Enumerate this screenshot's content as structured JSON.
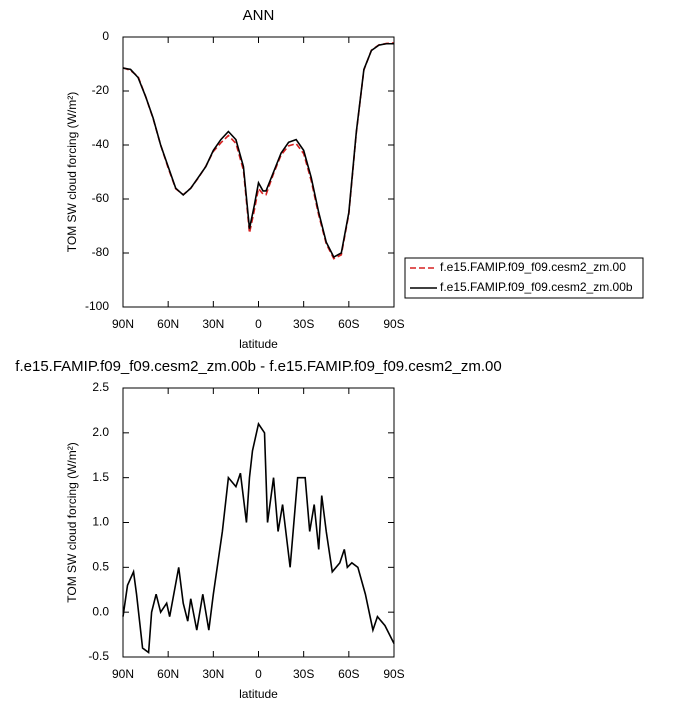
{
  "chart_data": [
    {
      "type": "line",
      "title": "ANN",
      "xlabel": "latitude",
      "ylabel": "TOM SW cloud forcing (W/m²)",
      "x": [
        90,
        85,
        80,
        75,
        70,
        65,
        60,
        55,
        50,
        45,
        40,
        35,
        30,
        25,
        20,
        15,
        10,
        6,
        3,
        0,
        -3,
        -5,
        -10,
        -15,
        -20,
        -25,
        -30,
        -35,
        -40,
        -45,
        -50,
        -55,
        -60,
        -65,
        -70,
        -75,
        -80,
        -85,
        -90
      ],
      "xlim": [
        90,
        -90
      ],
      "xticks": [
        {
          "value": 90,
          "label": "90N"
        },
        {
          "value": 60,
          "label": "60N"
        },
        {
          "value": 30,
          "label": "30N"
        },
        0,
        {
          "value": -30,
          "label": "30S"
        },
        {
          "value": -60,
          "label": "60S"
        },
        {
          "value": -90,
          "label": "90S"
        }
      ],
      "ylim": [
        -100,
        0
      ],
      "yticks": [
        0,
        -20,
        -40,
        -60,
        -80,
        -100
      ],
      "legend": "right",
      "series": [
        {
          "name": "f.e15.FAMIP.f09_f09.cesm2_zm.00",
          "color": "#d62020",
          "style": "dashed",
          "values": [
            -11.4,
            -12.4,
            -14.6,
            -22,
            -30.2,
            -40,
            -48.5,
            -56.2,
            -58.4,
            -56,
            -52.2,
            -47.9,
            -42.4,
            -39.2,
            -36.5,
            -39.4,
            -49.3,
            -72.6,
            -64.8,
            -56.1,
            -58.2,
            -58.4,
            -50.6,
            -43.7,
            -40.3,
            -39.5,
            -43.2,
            -53.2,
            -66,
            -76.6,
            -82.1,
            -80.7,
            -65.6,
            -35.4,
            -12.2,
            -4.9,
            -2.9,
            -2.4,
            -2.2
          ]
        },
        {
          "name": "f.e15.FAMIP.f09_f09.cesm2_zm.00b",
          "color": "#000000",
          "style": "solid",
          "values": [
            -11.5,
            -12,
            -15,
            -22,
            -30,
            -40,
            -48,
            -56,
            -58.5,
            -56,
            -52,
            -48,
            -42,
            -38,
            -35,
            -38,
            -48,
            -71,
            -63,
            -54,
            -57,
            -57,
            -50,
            -43,
            -39,
            -38,
            -42,
            -52,
            -65,
            -76,
            -81.5,
            -80,
            -65,
            -35,
            -12,
            -5,
            -3,
            -2.5,
            -2.5
          ]
        }
      ]
    },
    {
      "type": "line",
      "title": "f.e15.FAMIP.f09_f09.cesm2_zm.00b - f.e15.FAMIP.f09_f09.cesm2_zm.00",
      "xlabel": "latitude",
      "ylabel": "TOM SW cloud forcing (W/m²)",
      "x": [
        90,
        87,
        83,
        81,
        79,
        77,
        73,
        71,
        68,
        65,
        61,
        59,
        53,
        50,
        47,
        45,
        41,
        37,
        33,
        30,
        24,
        20,
        15,
        12,
        8,
        6,
        4,
        0,
        -4,
        -6,
        -10,
        -13,
        -16,
        -21,
        -26,
        -31,
        -34,
        -37,
        -40,
        -42,
        -45,
        -49,
        -54,
        -57,
        -59,
        -62,
        -66,
        -71,
        -76,
        -79,
        -84,
        -90
      ],
      "xlim": [
        90,
        -90
      ],
      "xticks": [
        {
          "value": 90,
          "label": "90N"
        },
        {
          "value": 60,
          "label": "60N"
        },
        {
          "value": 30,
          "label": "30N"
        },
        0,
        {
          "value": -30,
          "label": "30S"
        },
        {
          "value": -60,
          "label": "60S"
        },
        {
          "value": -90,
          "label": "90S"
        }
      ],
      "ylim": [
        -0.5,
        2.5
      ],
      "yticks": [
        2.5,
        {
          "value": 2,
          "label": "2.0"
        },
        1.5,
        {
          "value": 1,
          "label": "1.0"
        },
        0.5,
        {
          "value": 0,
          "label": "0.0"
        },
        -0.5
      ],
      "series": [
        {
          "color": "#000000",
          "style": "solid",
          "values": [
            -0.05,
            0.3,
            0.45,
            0.2,
            -0.1,
            -0.4,
            -0.45,
            0,
            0.2,
            0,
            0.1,
            -0.05,
            0.5,
            0.1,
            -0.1,
            0.15,
            -0.2,
            0.2,
            -0.2,
            0.2,
            0.9,
            1.5,
            1.4,
            1.55,
            1,
            1.5,
            1.8,
            2.1,
            2,
            1,
            1.5,
            0.9,
            1.2,
            0.5,
            1.5,
            1.5,
            0.9,
            1.2,
            0.7,
            1.3,
            0.9,
            0.45,
            0.55,
            0.7,
            0.5,
            0.55,
            0.5,
            0.2,
            -0.2,
            -0.05,
            -0.15,
            -0.35
          ]
        }
      ]
    }
  ]
}
